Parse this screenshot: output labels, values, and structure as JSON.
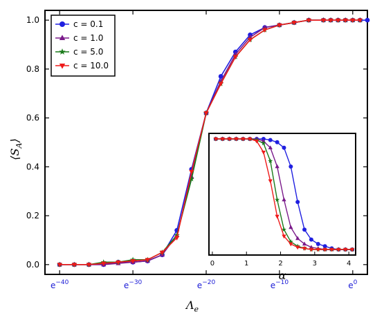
{
  "chart_data": [
    {
      "type": "line",
      "xlabel_main": "Λ",
      "xlabel_sub": "e",
      "ylabel_main": "⟨S",
      "ylabel_sub": "A",
      "ylabel_close": "⟩",
      "x_scale": "log (base e)",
      "xlim": [
        -42,
        2
      ],
      "ylim": [
        -0.04,
        1.04
      ],
      "x_ticks": [
        {
          "exp": -40,
          "base": "e",
          "sup": "−40"
        },
        {
          "exp": -30,
          "base": "e",
          "sup": "−30"
        },
        {
          "exp": -20,
          "base": "e",
          "sup": "−20"
        },
        {
          "exp": -10,
          "base": "e",
          "sup": "−10"
        },
        {
          "exp": 0,
          "base": "e",
          "sup": "0"
        }
      ],
      "y_ticks": [
        "0.0",
        "0.2",
        "0.4",
        "0.6",
        "0.8",
        "1.0"
      ],
      "legend_position": "top-left",
      "series": [
        {
          "name": "c = 0.1",
          "color": "#1f1fe0",
          "marker": "circle",
          "x_exp": [
            -40,
            -38,
            -36,
            -34,
            -32,
            -30,
            -28,
            -26,
            -24,
            -22,
            -20,
            -18,
            -16,
            -14,
            -12,
            -10,
            -8,
            -6,
            -4,
            -3,
            -2,
            -1,
            0,
            1,
            2
          ],
          "y": [
            0.0,
            0.0,
            0.0,
            0.0,
            0.01,
            0.01,
            0.015,
            0.04,
            0.14,
            0.39,
            0.62,
            0.77,
            0.87,
            0.94,
            0.97,
            0.98,
            0.99,
            1.0,
            1.0,
            1.0,
            1.0,
            1.0,
            1.0,
            1.0,
            1.0
          ]
        },
        {
          "name": "c = 1.0",
          "color": "#7a1a8a",
          "marker": "triangle-up",
          "x_exp": [
            -40,
            -38,
            -36,
            -34,
            -32,
            -30,
            -28,
            -26,
            -24,
            -22,
            -20,
            -18,
            -16,
            -14,
            -12,
            -10,
            -8,
            -6,
            -4,
            -3,
            -2,
            -1,
            0,
            1
          ],
          "y": [
            0.0,
            0.0,
            0.0,
            0.0,
            0.005,
            0.01,
            0.015,
            0.04,
            0.12,
            0.36,
            0.62,
            0.75,
            0.86,
            0.93,
            0.97,
            0.98,
            0.99,
            1.0,
            1.0,
            1.0,
            1.0,
            1.0,
            1.0,
            1.0
          ]
        },
        {
          "name": "c = 5.0",
          "color": "#1a7a1a",
          "marker": "star",
          "x_exp": [
            -40,
            -38,
            -36,
            -34,
            -32,
            -30,
            -28,
            -26,
            -24,
            -22,
            -20,
            -18,
            -16,
            -14,
            -12,
            -10,
            -8,
            -6,
            -4,
            -3,
            -2,
            -1,
            0,
            1
          ],
          "y": [
            0.0,
            0.0,
            0.0,
            0.01,
            0.01,
            0.02,
            0.02,
            0.05,
            0.12,
            0.35,
            0.62,
            0.74,
            0.85,
            0.92,
            0.96,
            0.98,
            0.99,
            1.0,
            1.0,
            1.0,
            1.0,
            1.0,
            1.0,
            1.0
          ]
        },
        {
          "name": "c = 10.0",
          "color": "#ee1a1a",
          "marker": "triangle-down",
          "x_exp": [
            -40,
            -38,
            -36,
            -34,
            -32,
            -30,
            -28,
            -26,
            -24,
            -22,
            -20,
            -18,
            -16,
            -14,
            -12,
            -10,
            -8,
            -6,
            -4,
            -3,
            -2,
            -1,
            0,
            1
          ],
          "y": [
            0.0,
            0.0,
            0.0,
            0.005,
            0.01,
            0.015,
            0.02,
            0.05,
            0.11,
            0.38,
            0.62,
            0.74,
            0.85,
            0.92,
            0.96,
            0.98,
            0.99,
            1.0,
            1.0,
            1.0,
            1.0,
            1.0,
            1.0,
            1.0
          ]
        }
      ]
    },
    {
      "type": "line",
      "role": "inset",
      "xlabel": "α",
      "xlim": [
        -0.1,
        4.2
      ],
      "ylim": [
        -0.05,
        1.05
      ],
      "x_ticks": [
        "0",
        "1",
        "2",
        "3",
        "4"
      ],
      "series": [
        {
          "name": "c = 0.1",
          "color": "#1f1fe0",
          "marker": "circle",
          "x": [
            0.1,
            0.3,
            0.5,
            0.7,
            0.9,
            1.1,
            1.3,
            1.5,
            1.7,
            1.9,
            2.1,
            2.3,
            2.5,
            2.7,
            2.9,
            3.1,
            3.3,
            3.5,
            3.7,
            3.9,
            4.1
          ],
          "y": [
            1.0,
            1.0,
            1.0,
            1.0,
            1.0,
            1.0,
            1.0,
            1.0,
            0.99,
            0.97,
            0.92,
            0.75,
            0.43,
            0.18,
            0.09,
            0.05,
            0.03,
            0.01,
            0.0,
            0.0,
            0.0
          ]
        },
        {
          "name": "c = 1.0",
          "color": "#7a1a8a",
          "marker": "triangle-up",
          "x": [
            0.1,
            0.3,
            0.5,
            0.7,
            0.9,
            1.1,
            1.3,
            1.5,
            1.7,
            1.9,
            2.1,
            2.3,
            2.5,
            2.7,
            2.9,
            3.1,
            3.3,
            3.5,
            3.7,
            3.9,
            4.1
          ],
          "y": [
            1.0,
            1.0,
            1.0,
            1.0,
            1.0,
            1.0,
            1.0,
            0.98,
            0.92,
            0.75,
            0.45,
            0.2,
            0.1,
            0.05,
            0.02,
            0.01,
            0.0,
            0.0,
            0.0,
            0.0,
            0.0
          ]
        },
        {
          "name": "c = 5.0",
          "color": "#1a7a1a",
          "marker": "star",
          "x": [
            0.1,
            0.3,
            0.5,
            0.7,
            0.9,
            1.1,
            1.3,
            1.5,
            1.7,
            1.9,
            2.1,
            2.3,
            2.5,
            2.7,
            2.9,
            3.1,
            3.3,
            3.5,
            3.7,
            3.9,
            4.1
          ],
          "y": [
            1.0,
            1.0,
            1.0,
            1.0,
            1.0,
            1.0,
            0.99,
            0.96,
            0.8,
            0.45,
            0.18,
            0.07,
            0.03,
            0.01,
            0.0,
            0.0,
            0.0,
            0.0,
            0.0,
            0.0,
            0.0
          ]
        },
        {
          "name": "c = 10.0",
          "color": "#ee1a1a",
          "marker": "triangle-down",
          "x": [
            0.1,
            0.3,
            0.5,
            0.7,
            0.9,
            1.1,
            1.3,
            1.5,
            1.7,
            1.9,
            2.1,
            2.3,
            2.5,
            2.7,
            2.9,
            3.1,
            3.3,
            3.5,
            3.7,
            3.9,
            4.1
          ],
          "y": [
            1.0,
            1.0,
            1.0,
            1.0,
            1.0,
            1.0,
            0.98,
            0.88,
            0.62,
            0.3,
            0.12,
            0.05,
            0.02,
            0.01,
            0.0,
            0.0,
            0.0,
            0.0,
            0.0,
            0.0,
            0.0
          ]
        }
      ]
    }
  ]
}
